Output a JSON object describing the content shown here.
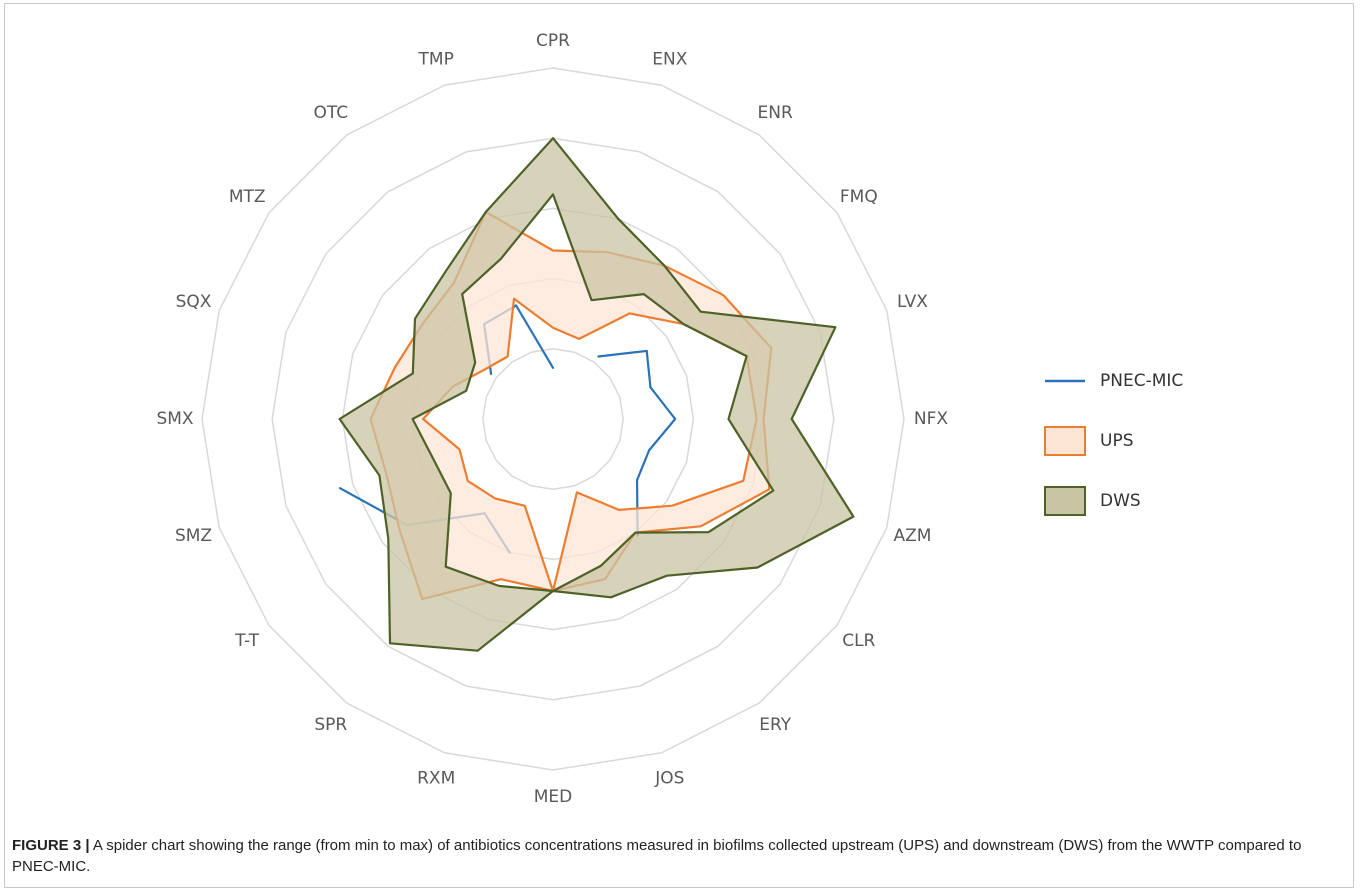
{
  "chart_data": {
    "type": "radar_range",
    "categories": [
      "CPR",
      "ENX",
      "ENR",
      "FMQ",
      "LVX",
      "NFX",
      "AZM",
      "CLR",
      "ERY",
      "JOS",
      "MED",
      "RXM",
      "SPR",
      "T-T",
      "SMZ",
      "SMX",
      "SQX",
      "MTZ",
      "OTC",
      "TMP"
    ],
    "rlim": [
      0,
      5
    ],
    "rticks": [
      1,
      2,
      3,
      4,
      5
    ],
    "grid": true,
    "legend": "right",
    "series": [
      {
        "name": "PNEC-MIC",
        "kind": "line",
        "color": "#2a73b8",
        "values": [
          0.73,
          null,
          1.1,
          1.65,
          1.46,
          1.74,
          1.44,
          1.48,
          2.05,
          null,
          null,
          2.0,
          1.66,
          2.57,
          3.19,
          null,
          null,
          1.09,
          1.67,
          1.7
        ]
      },
      {
        "name": "UPS",
        "kind": "range",
        "color": "#ed7d31",
        "fill": "#fde6d6",
        "min": [
          1.3,
          1.2,
          1.86,
          2.3,
          2.9,
          2.9,
          2.85,
          2.1,
          1.6,
          1.1,
          2.45,
          1.3,
          1.4,
          1.5,
          1.4,
          1.85,
          1.5,
          1.2,
          1.1,
          1.8
        ],
        "max": [
          2.4,
          2.5,
          2.7,
          3.0,
          3.27,
          3.0,
          3.24,
          2.6,
          2.0,
          2.4,
          2.45,
          2.4,
          3.17,
          2.7,
          2.5,
          2.6,
          2.37,
          2.3,
          2.4,
          3.1
        ]
      },
      {
        "name": "DWS",
        "kind": "range",
        "color": "#4e6228",
        "fill": "#c9c4a4",
        "min": [
          3.2,
          1.78,
          2.2,
          2.3,
          2.9,
          2.5,
          3.3,
          2.74,
          2.0,
          2.2,
          2.45,
          2.5,
          2.6,
          1.8,
          1.8,
          2.0,
          1.3,
          1.37,
          2.2,
          2.4
        ],
        "max": [
          4.0,
          3.0,
          2.7,
          2.6,
          4.23,
          3.4,
          4.5,
          3.6,
          2.76,
          2.67,
          2.45,
          3.47,
          3.95,
          2.9,
          2.6,
          3.04,
          2.1,
          2.43,
          2.6,
          3.1
        ]
      }
    ]
  },
  "caption_label": "FIGURE 3 |",
  "caption": "A spider chart showing the range (from min to max) of antibiotics concentrations measured in biofilms collected upstream (UPS) and downstream (DWS) from the WWTP compared to PNEC-MIC."
}
